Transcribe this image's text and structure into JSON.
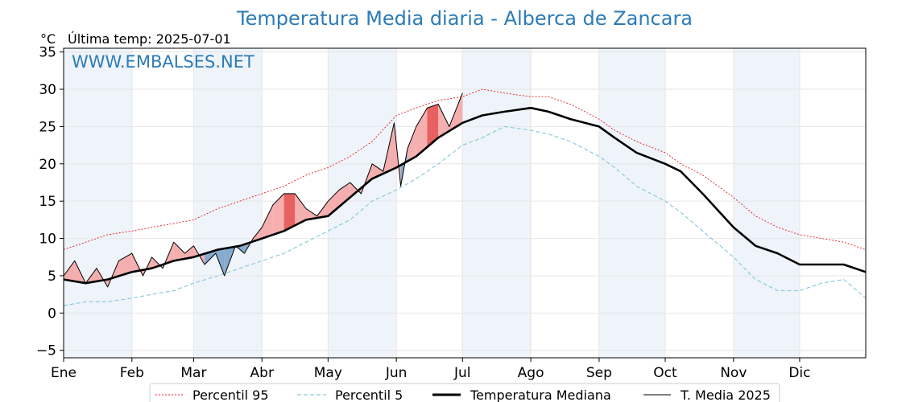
{
  "chart_data": {
    "type": "line",
    "title": "Temperatura Media diaria - Alberca de Zancara",
    "unit_label": "°C",
    "last_temp_label": "Última temp: 2025-07-01",
    "watermark": "WWW.EMBALSES.NET",
    "ylim": [
      -6,
      35.5
    ],
    "yticks": [
      -5,
      0,
      5,
      10,
      15,
      20,
      25,
      30,
      35
    ],
    "ytick_labels": [
      "−5",
      "0",
      "5",
      "10",
      "15",
      "20",
      "25",
      "30",
      "35"
    ],
    "month_labels": [
      "Ene",
      "Feb",
      "Mar",
      "Abr",
      "May",
      "Jun",
      "Jul",
      "Ago",
      "Sep",
      "Oct",
      "Nov",
      "Dic"
    ],
    "month_start_days": [
      0,
      31,
      59,
      90,
      120,
      151,
      181,
      212,
      243,
      273,
      304,
      334
    ],
    "x_range_days": [
      0,
      364
    ],
    "grid": true,
    "legend_position": "bottom",
    "colors": {
      "p95": "#e41a1c",
      "p5": "#8ec9dd",
      "median": "#000000",
      "current": "#000000",
      "above_fill": "#f4a6a6",
      "strong_above_fill": "#e45050",
      "below_fill": "#7aa3c9",
      "month_shade": "#eef4fa",
      "title": "#2c7bb6"
    },
    "series": [
      {
        "name": "Percentil 95",
        "style": "dotted",
        "x": [
          0,
          10,
          20,
          31,
          40,
          50,
          59,
          70,
          80,
          90,
          100,
          110,
          120,
          130,
          140,
          151,
          160,
          170,
          181,
          190,
          200,
          212,
          220,
          230,
          243,
          250,
          260,
          273,
          280,
          290,
          304,
          314,
          324,
          334,
          344,
          354,
          364
        ],
        "values": [
          8.5,
          9.5,
          10.5,
          11.0,
          11.5,
          12.0,
          12.5,
          14.0,
          15.0,
          16.0,
          17.0,
          18.5,
          19.5,
          21.0,
          23.0,
          26.5,
          27.5,
          28.5,
          29.0,
          30.0,
          29.5,
          29.0,
          29.0,
          28.0,
          26.0,
          24.5,
          23.0,
          21.5,
          20.0,
          18.5,
          15.5,
          13.0,
          11.5,
          10.5,
          10.0,
          9.5,
          8.5
        ]
      },
      {
        "name": "Percentil 5",
        "style": "dashed",
        "x": [
          0,
          10,
          20,
          31,
          40,
          50,
          59,
          70,
          80,
          90,
          100,
          110,
          120,
          130,
          140,
          151,
          160,
          170,
          181,
          190,
          200,
          212,
          220,
          230,
          243,
          250,
          260,
          273,
          280,
          290,
          304,
          314,
          324,
          334,
          344,
          354,
          364
        ],
        "values": [
          1.0,
          1.5,
          1.5,
          2.0,
          2.5,
          3.0,
          4.0,
          5.0,
          6.0,
          7.0,
          8.0,
          9.5,
          11.0,
          12.5,
          15.0,
          16.5,
          18.0,
          20.0,
          22.5,
          23.5,
          25.0,
          24.5,
          24.0,
          23.0,
          21.0,
          19.5,
          17.0,
          15.0,
          13.5,
          11.0,
          7.5,
          4.5,
          3.0,
          3.0,
          4.0,
          4.5,
          2.0
        ]
      },
      {
        "name": "Temperatura Mediana",
        "style": "thick",
        "x": [
          0,
          10,
          20,
          31,
          40,
          50,
          59,
          70,
          80,
          90,
          100,
          110,
          120,
          130,
          140,
          151,
          160,
          170,
          181,
          190,
          200,
          212,
          220,
          230,
          243,
          250,
          260,
          273,
          280,
          290,
          304,
          314,
          324,
          334,
          344,
          354,
          364
        ],
        "values": [
          4.5,
          4.0,
          4.5,
          5.5,
          6.0,
          7.0,
          7.5,
          8.5,
          9.0,
          10.0,
          11.0,
          12.5,
          13.0,
          15.5,
          18.0,
          19.5,
          21.0,
          23.5,
          25.5,
          26.5,
          27.0,
          27.5,
          27.0,
          26.0,
          25.0,
          23.5,
          21.5,
          20.0,
          19.0,
          16.0,
          11.5,
          9.0,
          8.0,
          6.5,
          6.5,
          6.5,
          5.5
        ]
      },
      {
        "name": "T. Media 2025",
        "style": "thin",
        "x": [
          0,
          5,
          10,
          15,
          20,
          25,
          31,
          36,
          40,
          45,
          50,
          55,
          59,
          64,
          69,
          73,
          78,
          82,
          86,
          90,
          95,
          100,
          105,
          110,
          115,
          120,
          125,
          130,
          135,
          140,
          145,
          150,
          153,
          156,
          160,
          165,
          170,
          175,
          181
        ],
        "values": [
          5.0,
          7.0,
          4.0,
          6.0,
          3.5,
          7.0,
          8.0,
          5.0,
          7.5,
          6.0,
          9.5,
          8.0,
          9.0,
          6.5,
          8.0,
          5.0,
          9.0,
          8.0,
          10.0,
          11.5,
          14.5,
          16.0,
          16.0,
          14.0,
          13.0,
          15.0,
          16.5,
          17.5,
          16.0,
          20.0,
          19.0,
          25.5,
          17.0,
          22.0,
          25.0,
          27.5,
          28.0,
          25.0,
          29.5
        ]
      }
    ]
  }
}
